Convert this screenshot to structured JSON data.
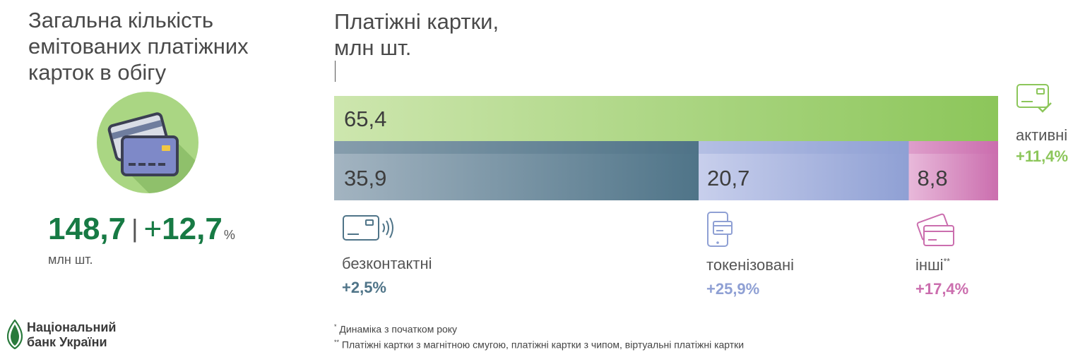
{
  "left": {
    "title": "Загальна кількість\nемітованих платіжних\nкарток в обігу",
    "total_value": "148,7",
    "separator": "|",
    "total_change_plus": "+",
    "total_change": "12,7",
    "total_pct": "%",
    "total_unit": "млн шт."
  },
  "logo": {
    "text": "Національний\nбанк України"
  },
  "chart_title": "Платіжні картки,\nмлн шт.",
  "chart_data": {
    "type": "bar",
    "title": "Платіжні картки, млн шт.",
    "series": [
      {
        "name": "активні",
        "values": [
          65.4
        ],
        "label": "65,4",
        "change": "+11,4%"
      },
      {
        "name": "безконтактні",
        "values": [
          35.9
        ],
        "label": "35,9",
        "change": "+2,5%"
      },
      {
        "name": "токенізовані",
        "values": [
          20.7
        ],
        "label": "20,7",
        "change": "+25,9%"
      },
      {
        "name": "інші**",
        "values": [
          8.8
        ],
        "label": "8,8",
        "change": "+17,4%"
      }
    ],
    "stacked_segments": [
      "безконтактні",
      "токенізовані",
      "інші**"
    ]
  },
  "legend": {
    "active": {
      "label": "активні",
      "change": "+11,4%",
      "icon": "card-check-icon"
    },
    "contactless": {
      "label": "безконтактні",
      "change": "+2,5%",
      "icon": "contactless-card-icon"
    },
    "tokenized": {
      "label": "токенізовані",
      "change": "+25,9%",
      "icon": "phone-card-icon"
    },
    "other": {
      "label": "інші",
      "sup": "**",
      "change": "+17,4%",
      "icon": "stacked-cards-icon"
    }
  },
  "notes": {
    "n1_mark": "*",
    "n1": " Динаміка з початком року",
    "n2_mark": "**",
    "n2": " Платіжні картки з магнітною смугою, платіжні картки з чипом, віртуальні платіжні картки"
  },
  "colors": {
    "active": "#8cc65a",
    "contactless": "#4f7488",
    "tokenized": "#8fa0d4",
    "other": "#cb6eae",
    "total": "#177a44"
  }
}
